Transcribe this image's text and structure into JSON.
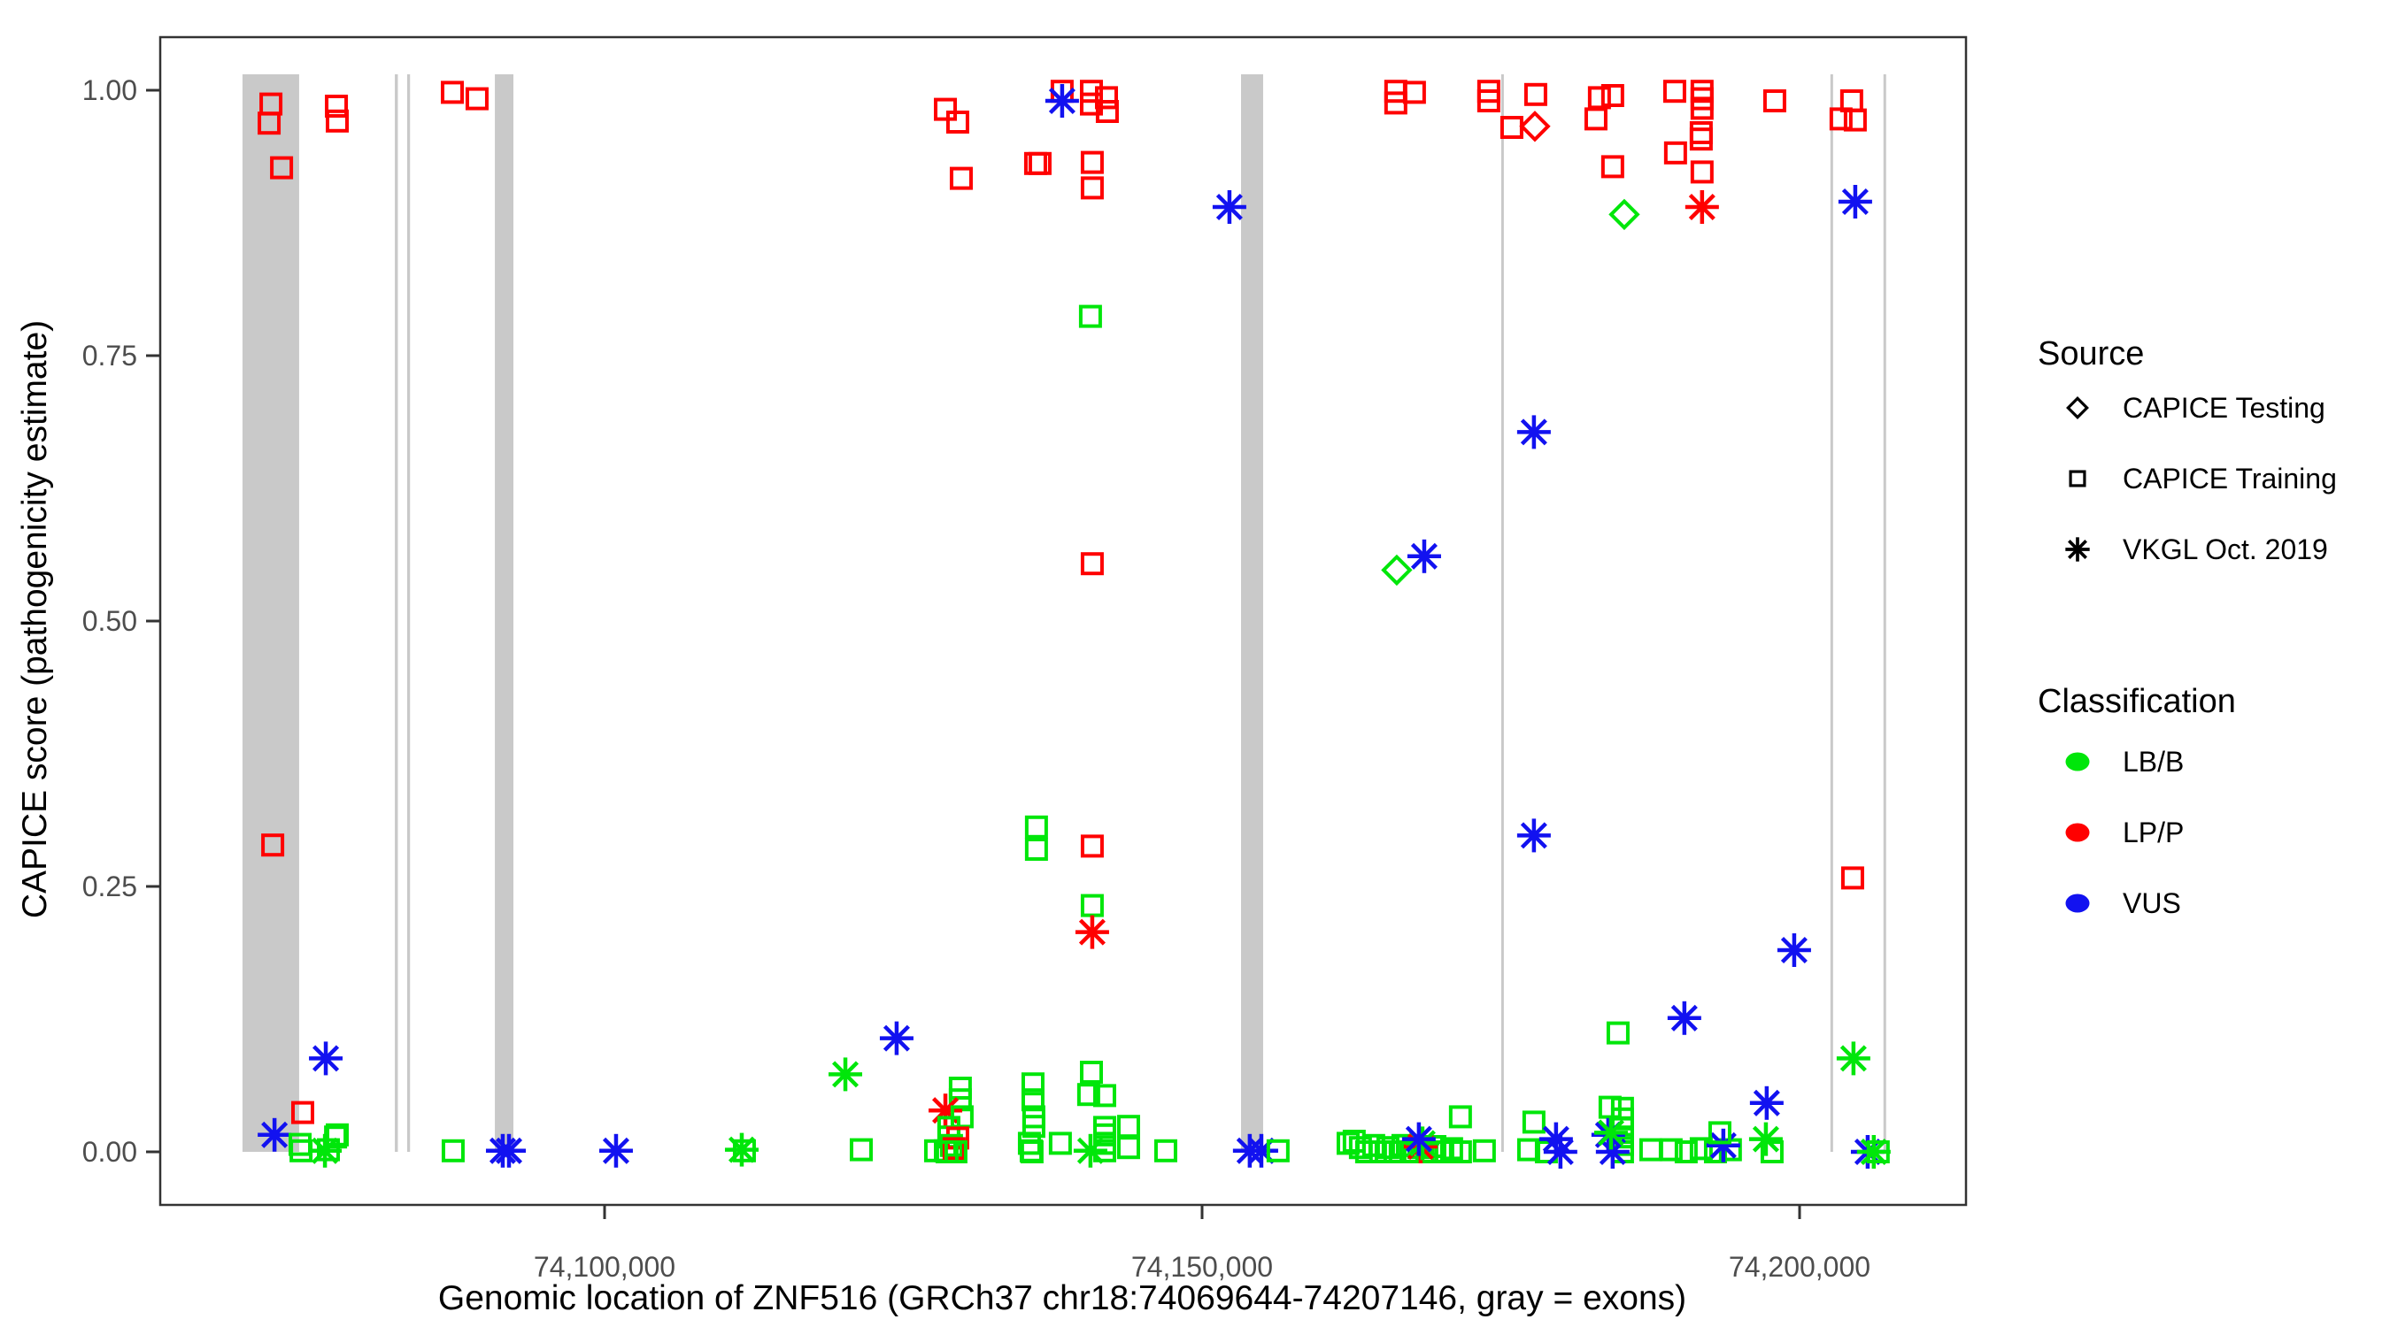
{
  "figure": {
    "background": "#ffffff",
    "panel_border_color": "#333333",
    "tick_color": "#333333",
    "tick_label_color": "#4d4d4d",
    "axis_title_color": "#000000",
    "exon_band_color": "#c9c9c9"
  },
  "legend": {
    "source": {
      "title": "Source",
      "items": [
        {
          "shape": "diamond",
          "label": "CAPICE Testing"
        },
        {
          "shape": "square",
          "label": "CAPICE Training"
        },
        {
          "shape": "asterisk",
          "label": "VKGL Oct. 2019"
        }
      ]
    },
    "classification": {
      "title": "Classification",
      "items": [
        {
          "color_key": "LB/B",
          "label": "LB/B"
        },
        {
          "color_key": "LP/P",
          "label": "LP/P"
        },
        {
          "color_key": "VUS",
          "label": "VUS"
        }
      ]
    }
  },
  "chart_data": {
    "type": "scatter",
    "title": "",
    "xlabel": "Genomic location of ZNF516 (GRCh37 chr18:74069644-74207146, gray = exons)",
    "ylabel": "CAPICE score (pathogenicity estimate)",
    "x_domain": [
      74062815,
      74213926
    ],
    "y_domain": [
      -0.05,
      1.05
    ],
    "grid": false,
    "legend_position": "right",
    "x_ticks": [
      {
        "value": 74100000,
        "label": "74,100,000"
      },
      {
        "value": 74150000,
        "label": "74,150,000"
      },
      {
        "value": 74200000,
        "label": "74,200,000"
      }
    ],
    "y_ticks": [
      {
        "value": 0.0,
        "label": "0.00"
      },
      {
        "value": 0.25,
        "label": "0.25"
      },
      {
        "value": 0.5,
        "label": "0.50"
      },
      {
        "value": 0.75,
        "label": "0.75"
      },
      {
        "value": 1.0,
        "label": "1.00"
      }
    ],
    "classification_colors": {
      "LB/B": "#00E60A",
      "LP/P": "#FF0000",
      "VUS": "#1212F0"
    },
    "source_shapes": {
      "CAPICE Testing": "diamond",
      "CAPICE Training": "square",
      "VKGL Oct. 2019": "asterisk"
    },
    "exons_note": "gray vertical bands = exons",
    "exons": [
      {
        "start": 74069700,
        "end": 74074440
      },
      {
        "start": 74082450,
        "end": 74082700
      },
      {
        "start": 74083480,
        "end": 74083720
      },
      {
        "start": 74090820,
        "end": 74092370
      },
      {
        "start": 74153260,
        "end": 74155110
      },
      {
        "start": 74175030,
        "end": 74175250
      },
      {
        "start": 74202580,
        "end": 74202800
      },
      {
        "start": 74207020,
        "end": 74207240
      }
    ],
    "points_format": [
      "genomic_position",
      "capice_score",
      "source_shape",
      "classification"
    ],
    "points": [
      [
        74072080,
        0.987,
        "square",
        "LP/P"
      ],
      [
        74071930,
        0.969,
        "square",
        "LP/P"
      ],
      [
        74072970,
        0.927,
        "square",
        "LP/P"
      ],
      [
        74072230,
        0.289,
        "square",
        "LP/P"
      ],
      [
        74072380,
        0.016,
        "asterisk",
        "VUS"
      ],
      [
        74074740,
        0.037,
        "square",
        "LP/P"
      ],
      [
        74074520,
        0.007,
        "square",
        "LB/B"
      ],
      [
        74074600,
        0.001,
        "square",
        "LB/B"
      ],
      [
        74076600,
        0.001,
        "asterisk",
        "LB/B"
      ],
      [
        74076890,
        0.002,
        "square",
        "LB/B"
      ],
      [
        74077490,
        0.014,
        "square",
        "LB/B"
      ],
      [
        74077630,
        0.016,
        "square",
        "LB/B"
      ],
      [
        74076670,
        0.088,
        "asterisk",
        "VUS"
      ],
      [
        74077560,
        0.985,
        "square",
        "LP/P"
      ],
      [
        74077630,
        0.971,
        "square",
        "LP/P"
      ],
      [
        74087260,
        0.998,
        "square",
        "LP/P"
      ],
      [
        74089330,
        0.992,
        "square",
        "LP/P"
      ],
      [
        74087330,
        0.001,
        "square",
        "LB/B"
      ],
      [
        74091480,
        0.001,
        "asterisk",
        "VUS"
      ],
      [
        74092000,
        0.001,
        "asterisk",
        "VUS"
      ],
      [
        74100960,
        0.001,
        "asterisk",
        "VUS"
      ],
      [
        74111480,
        0.002,
        "asterisk",
        "LB/B"
      ],
      [
        74111700,
        0.001,
        "square",
        "LB/B"
      ],
      [
        74120150,
        0.073,
        "asterisk",
        "LB/B"
      ],
      [
        74121480,
        0.002,
        "square",
        "LB/B"
      ],
      [
        74124440,
        0.107,
        "asterisk",
        "VUS"
      ],
      [
        74128520,
        0.982,
        "square",
        "LP/P"
      ],
      [
        74129550,
        0.97,
        "square",
        "LP/P"
      ],
      [
        74129850,
        0.917,
        "square",
        "LP/P"
      ],
      [
        74138290,
        0.999,
        "square",
        "LP/P"
      ],
      [
        74138290,
        0.99,
        "asterisk",
        "VUS"
      ],
      [
        74140740,
        0.999,
        "square",
        "LP/P"
      ],
      [
        74140740,
        0.987,
        "square",
        "LP/P"
      ],
      [
        74142000,
        0.993,
        "square",
        "LP/P"
      ],
      [
        74142070,
        0.98,
        "square",
        "LP/P"
      ],
      [
        74136070,
        0.931,
        "square",
        "LP/P"
      ],
      [
        74136440,
        0.931,
        "square",
        "LP/P"
      ],
      [
        74140810,
        0.932,
        "square",
        "LP/P"
      ],
      [
        74140810,
        0.908,
        "square",
        "LP/P"
      ],
      [
        74140660,
        0.787,
        "square",
        "LB/B"
      ],
      [
        74140810,
        0.554,
        "square",
        "LP/P"
      ],
      [
        74136140,
        0.306,
        "square",
        "LB/B"
      ],
      [
        74136140,
        0.285,
        "square",
        "LB/B"
      ],
      [
        74140810,
        0.288,
        "square",
        "LP/P"
      ],
      [
        74140810,
        0.232,
        "square",
        "LB/B"
      ],
      [
        74140810,
        0.207,
        "asterisk",
        "LP/P"
      ],
      [
        74129770,
        0.06,
        "square",
        "LB/B"
      ],
      [
        74129770,
        0.049,
        "square",
        "LB/B"
      ],
      [
        74128520,
        0.039,
        "asterisk",
        "LP/P"
      ],
      [
        74129920,
        0.033,
        "square",
        "LB/B"
      ],
      [
        74128810,
        0.023,
        "square",
        "LB/B"
      ],
      [
        74128810,
        0.014,
        "square",
        "LB/B"
      ],
      [
        74129550,
        0.013,
        "square",
        "LP/P"
      ],
      [
        74129030,
        0.006,
        "square",
        "LB/B"
      ],
      [
        74128520,
        0.001,
        "square",
        "LB/B"
      ],
      [
        74127700,
        0.001,
        "square",
        "LB/B"
      ],
      [
        74129250,
        0.003,
        "square",
        "LP/P"
      ],
      [
        74128660,
        0.0,
        "square",
        "LB/B"
      ],
      [
        74129400,
        0.0,
        "square",
        "LB/B"
      ],
      [
        74135850,
        0.064,
        "square",
        "LB/B"
      ],
      [
        74135850,
        0.049,
        "square",
        "LB/B"
      ],
      [
        74135920,
        0.033,
        "square",
        "LB/B"
      ],
      [
        74135920,
        0.024,
        "square",
        "LB/B"
      ],
      [
        74135550,
        0.008,
        "square",
        "LB/B"
      ],
      [
        74135700,
        0.001,
        "square",
        "LB/B"
      ],
      [
        74135770,
        0.0,
        "square",
        "LB/B"
      ],
      [
        74138140,
        0.008,
        "square",
        "LB/B"
      ],
      [
        74140740,
        0.075,
        "square",
        "LB/B"
      ],
      [
        74140510,
        0.054,
        "square",
        "LB/B"
      ],
      [
        74141850,
        0.053,
        "square",
        "LB/B"
      ],
      [
        74140660,
        0.001,
        "asterisk",
        "LB/B"
      ],
      [
        74141850,
        0.023,
        "square",
        "LB/B"
      ],
      [
        74141850,
        0.016,
        "square",
        "LB/B"
      ],
      [
        74141850,
        0.008,
        "square",
        "LB/B"
      ],
      [
        74141850,
        0.001,
        "square",
        "LB/B"
      ],
      [
        74143850,
        0.024,
        "square",
        "LB/B"
      ],
      [
        74143850,
        0.004,
        "square",
        "LB/B"
      ],
      [
        74146960,
        0.001,
        "square",
        "LB/B"
      ],
      [
        74152290,
        0.89,
        "asterisk",
        "VUS"
      ],
      [
        74153990,
        0.001,
        "asterisk",
        "VUS"
      ],
      [
        74154960,
        0.001,
        "asterisk",
        "VUS"
      ],
      [
        74156360,
        0.001,
        "square",
        "LB/B"
      ],
      [
        74166210,
        0.999,
        "square",
        "LP/P"
      ],
      [
        74166210,
        0.988,
        "square",
        "LP/P"
      ],
      [
        74167770,
        0.998,
        "square",
        "LP/P"
      ],
      [
        74173990,
        0.999,
        "square",
        "LP/P"
      ],
      [
        74173990,
        0.99,
        "square",
        "LP/P"
      ],
      [
        74177920,
        0.996,
        "square",
        "LP/P"
      ],
      [
        74175920,
        0.965,
        "square",
        "LP/P"
      ],
      [
        74177850,
        0.966,
        "diamond",
        "LP/P"
      ],
      [
        74183250,
        0.993,
        "square",
        "LP/P"
      ],
      [
        74184360,
        0.995,
        "square",
        "LP/P"
      ],
      [
        74182960,
        0.973,
        "square",
        "LP/P"
      ],
      [
        74184360,
        0.928,
        "square",
        "LP/P"
      ],
      [
        74185330,
        0.883,
        "diamond",
        "LB/B"
      ],
      [
        74189550,
        0.999,
        "square",
        "LP/P"
      ],
      [
        74191840,
        0.999,
        "square",
        "LP/P"
      ],
      [
        74191840,
        0.992,
        "square",
        "LP/P"
      ],
      [
        74191840,
        0.983,
        "square",
        "LP/P"
      ],
      [
        74191770,
        0.96,
        "square",
        "LP/P"
      ],
      [
        74191770,
        0.954,
        "square",
        "LP/P"
      ],
      [
        74189620,
        0.941,
        "square",
        "LP/P"
      ],
      [
        74191840,
        0.923,
        "square",
        "LP/P"
      ],
      [
        74191840,
        0.89,
        "asterisk",
        "LP/P"
      ],
      [
        74197920,
        0.99,
        "square",
        "LP/P"
      ],
      [
        74204360,
        0.99,
        "square",
        "LP/P"
      ],
      [
        74203470,
        0.973,
        "square",
        "LP/P"
      ],
      [
        74204660,
        0.972,
        "square",
        "LP/P"
      ],
      [
        74204660,
        0.895,
        "asterisk",
        "VUS"
      ],
      [
        74177770,
        0.678,
        "asterisk",
        "VUS"
      ],
      [
        74166290,
        0.548,
        "diamond",
        "LB/B"
      ],
      [
        74168590,
        0.561,
        "asterisk",
        "VUS"
      ],
      [
        74177770,
        0.298,
        "asterisk",
        "VUS"
      ],
      [
        74204440,
        0.258,
        "square",
        "LP/P"
      ],
      [
        74199550,
        0.19,
        "asterisk",
        "VUS"
      ],
      [
        74190360,
        0.126,
        "asterisk",
        "VUS"
      ],
      [
        74184810,
        0.112,
        "square",
        "LB/B"
      ],
      [
        74204510,
        0.088,
        "asterisk",
        "LB/B"
      ],
      [
        74197250,
        0.046,
        "asterisk",
        "VUS"
      ],
      [
        74162220,
        0.008,
        "square",
        "LB/B"
      ],
      [
        74162730,
        0.01,
        "square",
        "LB/B"
      ],
      [
        74163250,
        0.004,
        "square",
        "LB/B"
      ],
      [
        74163770,
        0.0,
        "square",
        "LB/B"
      ],
      [
        74164360,
        0.006,
        "square",
        "LB/B"
      ],
      [
        74164950,
        0.0,
        "square",
        "LB/B"
      ],
      [
        74165550,
        0.004,
        "square",
        "LB/B"
      ],
      [
        74166140,
        0.0,
        "square",
        "LB/B"
      ],
      [
        74166810,
        0.006,
        "square",
        "LB/B"
      ],
      [
        74167480,
        0.0,
        "square",
        "LB/B"
      ],
      [
        74168140,
        0.004,
        "square",
        "LB/B"
      ],
      [
        74168810,
        0.0,
        "square",
        "LB/B"
      ],
      [
        74169480,
        0.005,
        "square",
        "LB/B"
      ],
      [
        74170140,
        0.0,
        "square",
        "LB/B"
      ],
      [
        74170880,
        0.003,
        "square",
        "LB/B"
      ],
      [
        74171620,
        0.0,
        "square",
        "LB/B"
      ],
      [
        74168290,
        0.005,
        "asterisk",
        "LP/P"
      ],
      [
        74168440,
        0.008,
        "asterisk",
        "LB/B"
      ],
      [
        74168140,
        0.012,
        "asterisk",
        "VUS"
      ],
      [
        74171620,
        0.033,
        "square",
        "LB/B"
      ],
      [
        74173620,
        0.001,
        "square",
        "LB/B"
      ],
      [
        74177770,
        0.028,
        "square",
        "LB/B"
      ],
      [
        74177330,
        0.002,
        "square",
        "LB/B"
      ],
      [
        74178810,
        0.0,
        "square",
        "LB/B"
      ],
      [
        74179620,
        0.012,
        "asterisk",
        "VUS"
      ],
      [
        74179990,
        0.0,
        "asterisk",
        "VUS"
      ],
      [
        74184140,
        0.042,
        "square",
        "LB/B"
      ],
      [
        74185180,
        0.041,
        "square",
        "LB/B"
      ],
      [
        74185180,
        0.031,
        "square",
        "LB/B"
      ],
      [
        74185180,
        0.022,
        "square",
        "LB/B"
      ],
      [
        74185180,
        0.014,
        "square",
        "LB/B"
      ],
      [
        74185180,
        0.007,
        "square",
        "LB/B"
      ],
      [
        74185180,
        0.0,
        "square",
        "LB/B"
      ],
      [
        74183990,
        0.016,
        "asterisk",
        "VUS"
      ],
      [
        74184360,
        0.0,
        "asterisk",
        "VUS"
      ],
      [
        74184220,
        0.018,
        "asterisk",
        "LB/B"
      ],
      [
        74187550,
        0.002,
        "square",
        "LB/B"
      ],
      [
        74189250,
        0.002,
        "square",
        "LB/B"
      ],
      [
        74190510,
        0.0,
        "square",
        "LB/B"
      ],
      [
        74191770,
        0.003,
        "square",
        "LB/B"
      ],
      [
        74192960,
        0.0,
        "square",
        "LB/B"
      ],
      [
        74194210,
        0.002,
        "square",
        "LB/B"
      ],
      [
        74193620,
        0.006,
        "asterisk",
        "VUS"
      ],
      [
        74193330,
        0.018,
        "square",
        "LB/B"
      ],
      [
        74197180,
        0.012,
        "asterisk",
        "LB/B"
      ],
      [
        74197700,
        0.0,
        "square",
        "LB/B"
      ],
      [
        74205700,
        0.0,
        "asterisk",
        "VUS"
      ],
      [
        74206210,
        0.0,
        "asterisk",
        "LB/B"
      ],
      [
        74206580,
        0.0,
        "square",
        "LB/B"
      ]
    ]
  }
}
